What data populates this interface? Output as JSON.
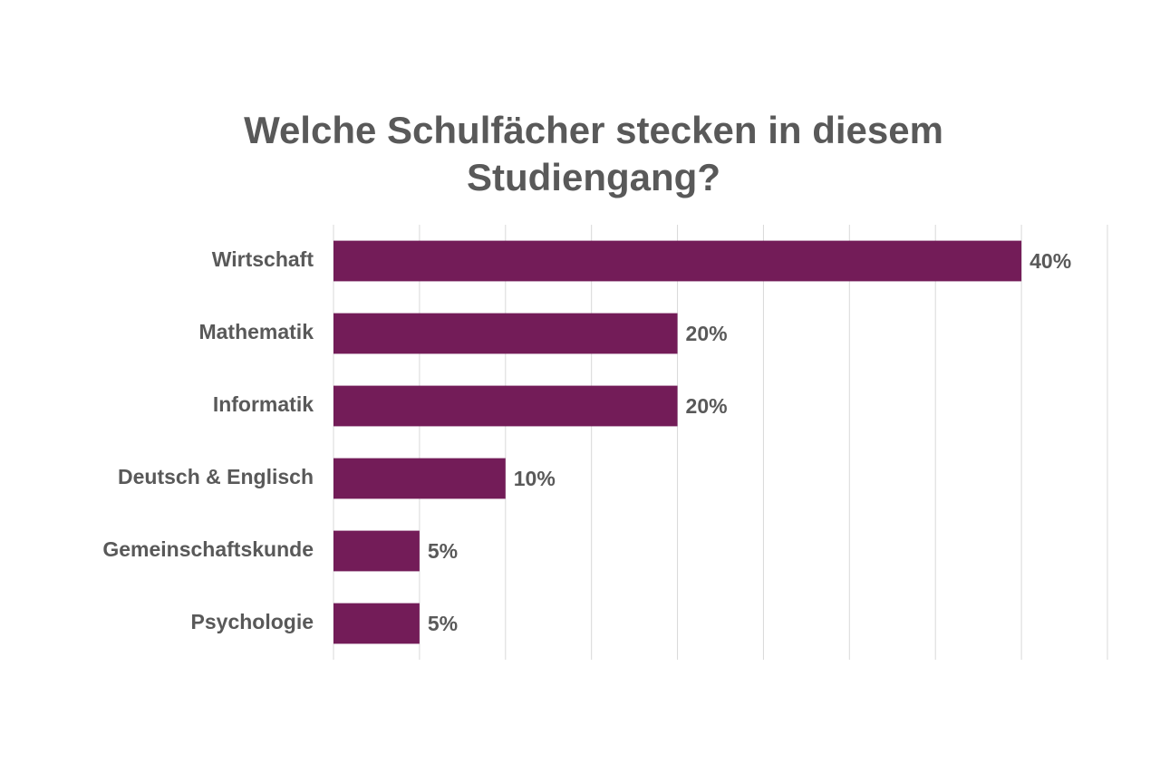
{
  "chart_data": {
    "type": "bar",
    "orientation": "horizontal",
    "title": "Welche Schulfächer stecken in diesem Studiengang?",
    "categories": [
      "Wirtschaft",
      "Mathematik",
      "Informatik",
      "Deutsch & Englisch",
      "Gemeinschaftskunde",
      "Psychologie"
    ],
    "values": [
      40,
      20,
      20,
      10,
      5,
      5
    ],
    "value_labels": [
      "40%",
      "20%",
      "20%",
      "10%",
      "5%",
      "5%"
    ],
    "color": "#731c58",
    "xlim": [
      0,
      45
    ],
    "xticks": [
      0,
      5,
      10,
      15,
      20,
      25,
      30,
      35,
      40,
      45
    ],
    "grid": true
  }
}
